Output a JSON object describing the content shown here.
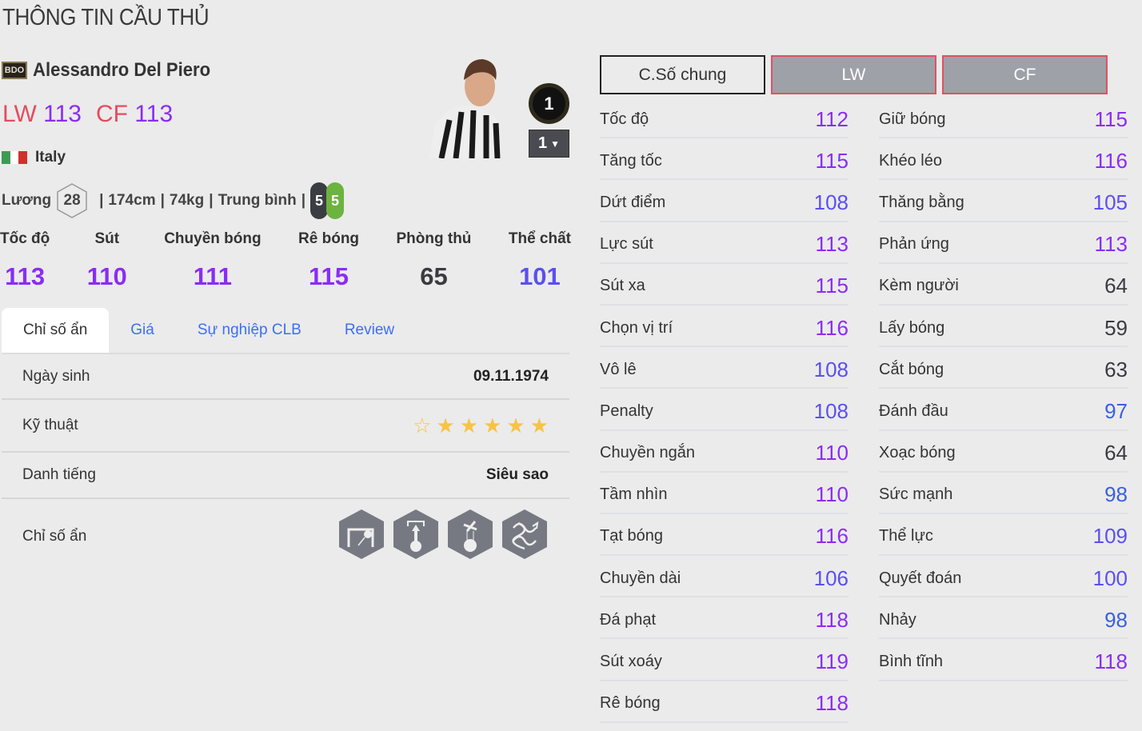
{
  "page_title": "THÔNG TIN CẦU THỦ",
  "player": {
    "season_badge": "BDO",
    "name": "Alessandro Del Piero",
    "positions": [
      {
        "pos": "LW",
        "ovr": "113"
      },
      {
        "pos": "CF",
        "ovr": "113"
      }
    ],
    "nationality": "Italy",
    "flag_colors": [
      "#3f9a55",
      "#ffffff",
      "#d2302a"
    ],
    "salary_label": "Lương",
    "salary": "28",
    "height": "174cm",
    "weight": "74kg",
    "body_type": "Trung bình",
    "left_foot": "5",
    "right_foot": "5",
    "foot_colors": [
      "#3c3d42",
      "#6db33f"
    ],
    "form_level": "1",
    "upgrade_level": "1"
  },
  "summary": [
    {
      "label": "Tốc độ",
      "value": "113"
    },
    {
      "label": "Sút",
      "value": "110"
    },
    {
      "label": "Chuyền bóng",
      "value": "111"
    },
    {
      "label": "Rê bóng",
      "value": "115"
    },
    {
      "label": "Phòng thủ",
      "value": "65"
    },
    {
      "label": "Thể chất",
      "value": "101"
    }
  ],
  "tabs": [
    {
      "label": "Chỉ số ẩn",
      "active": true
    },
    {
      "label": "Giá"
    },
    {
      "label": "Sự nghiệp CLB"
    },
    {
      "label": "Review"
    }
  ],
  "details": {
    "birth_label": "Ngày sinh",
    "birth": "09.11.1974",
    "skill_label": "Kỹ thuật",
    "skill_stars": 5,
    "skill_max": 6,
    "fame_label": "Danh tiếng",
    "fame": "Siêu sao",
    "traits_label": "Chỉ số ẩn",
    "traits": [
      "long-shot-icon",
      "power-header-icon",
      "solo-play-icon",
      "dribbler-icon"
    ]
  },
  "position_tabs": [
    {
      "label": "C.Số chung",
      "active": true
    },
    {
      "label": "LW"
    },
    {
      "label": "CF"
    }
  ],
  "stat_colors": {
    "elite": "#8b2cf5",
    "high": "#5b4ff0",
    "good": "#3a5fe0",
    "normal": "#3a3a40"
  },
  "stats_left": [
    [
      "Tốc độ",
      "112"
    ],
    [
      "Tăng tốc",
      "115"
    ],
    [
      "Dứt điểm",
      "108"
    ],
    [
      "Lực sút",
      "113"
    ],
    [
      "Sút xa",
      "115"
    ],
    [
      "Chọn vị trí",
      "116"
    ],
    [
      "Vô lê",
      "108"
    ],
    [
      "Penalty",
      "108"
    ],
    [
      "Chuyền ngắn",
      "110"
    ],
    [
      "Tầm nhìn",
      "110"
    ],
    [
      "Tạt bóng",
      "116"
    ],
    [
      "Chuyền dài",
      "106"
    ],
    [
      "Đá phạt",
      "118"
    ],
    [
      "Sút xoáy",
      "119"
    ],
    [
      "Rê bóng",
      "118"
    ]
  ],
  "stats_right": [
    [
      "Giữ bóng",
      "115"
    ],
    [
      "Khéo léo",
      "116"
    ],
    [
      "Thăng bằng",
      "105"
    ],
    [
      "Phản ứng",
      "113"
    ],
    [
      "Kèm người",
      "64"
    ],
    [
      "Lấy bóng",
      "59"
    ],
    [
      "Cắt bóng",
      "63"
    ],
    [
      "Đánh đầu",
      "97"
    ],
    [
      "Xoạc bóng",
      "64"
    ],
    [
      "Sức mạnh",
      "98"
    ],
    [
      "Thể lực",
      "109"
    ],
    [
      "Quyết đoán",
      "100"
    ],
    [
      "Nhảy",
      "98"
    ],
    [
      "Bình tĩnh",
      "118"
    ]
  ]
}
